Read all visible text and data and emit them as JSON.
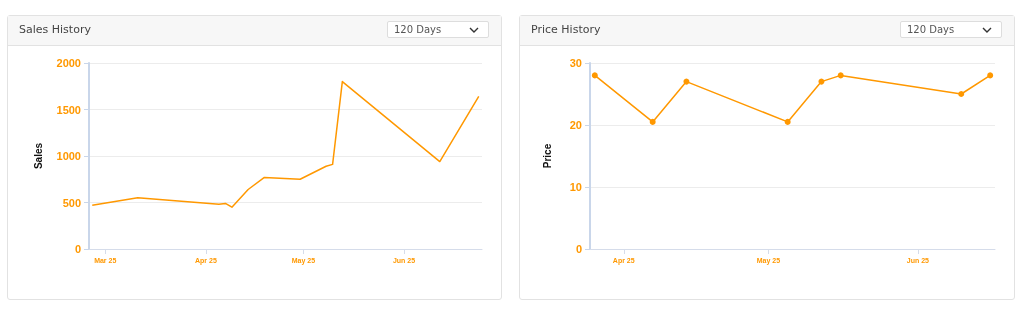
{
  "chart_data": [
    {
      "type": "line",
      "title": "Sales History",
      "ylabel": "Sales",
      "annotations": [
        "120 Days"
      ],
      "x": [
        "2025-02-25",
        "2025-03-11",
        "2025-04-05",
        "2025-04-07",
        "2025-04-09",
        "2025-04-14",
        "2025-04-19",
        "2025-04-30",
        "2025-05-08",
        "2025-05-10",
        "2025-05-13",
        "2025-06-12",
        "2025-06-24"
      ],
      "series": [
        {
          "color": "#ff9800",
          "values": [
            470,
            550,
            480,
            490,
            450,
            640,
            770,
            750,
            890,
            910,
            1800,
            940,
            1640
          ]
        }
      ],
      "xlim": [
        "2025-02-24",
        "2025-06-25"
      ],
      "xticks": [
        {
          "value": "2025-03-01",
          "label": "Mar 25"
        },
        {
          "value": "2025-04-01",
          "label": "Apr 25"
        },
        {
          "value": "2025-05-01",
          "label": "May 25"
        },
        {
          "value": "2025-06-01",
          "label": "Jun 25"
        }
      ],
      "ylim": [
        0,
        2000
      ],
      "yticks": [
        0,
        500,
        1000,
        1500,
        2000
      ],
      "grid": "y",
      "marker": "none",
      "line_style": "solid"
    },
    {
      "type": "line",
      "title": "Price History",
      "ylabel": "Price",
      "annotations": [
        "120 Days"
      ],
      "x": [
        "2025-03-26",
        "2025-04-07",
        "2025-04-14",
        "2025-05-05",
        "2025-05-12",
        "2025-05-16",
        "2025-06-10",
        "2025-06-16"
      ],
      "series": [
        {
          "color": "#ff9800",
          "values": [
            28,
            20.5,
            27,
            20.5,
            27,
            28,
            25,
            28
          ]
        }
      ],
      "xlim": [
        "2025-03-25",
        "2025-06-17"
      ],
      "xticks": [
        {
          "value": "2025-04-01",
          "label": "Apr 25"
        },
        {
          "value": "2025-05-01",
          "label": "May 25"
        },
        {
          "value": "2025-06-01",
          "label": "Jun 25"
        }
      ],
      "ylim": [
        0,
        30
      ],
      "yticks": [
        0,
        10,
        20,
        30
      ],
      "grid": "y",
      "marker": "circle",
      "line_style": "solid"
    }
  ]
}
